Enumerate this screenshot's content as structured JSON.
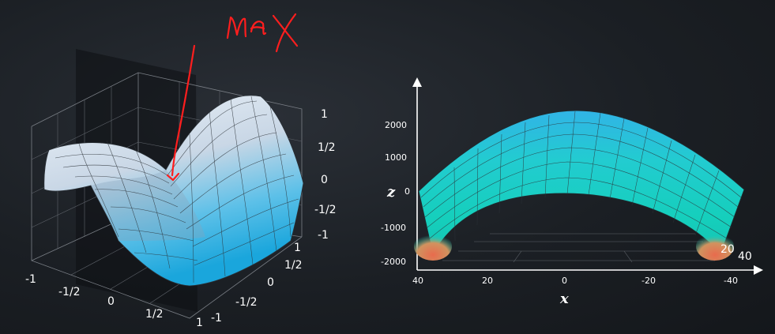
{
  "annotation": {
    "label": "max"
  },
  "left_plot": {
    "x_ticks": [
      "-1",
      "-1/2",
      "0",
      "1/2",
      "1"
    ],
    "y_ticks": [
      "-1",
      "-1/2",
      "0",
      "1/2",
      "1"
    ],
    "z_ticks": [
      "1",
      "1/2",
      "0",
      "-1/2",
      "-1"
    ]
  },
  "right_plot": {
    "z_label": "z",
    "x_label": "x",
    "z_ticks": [
      "2000",
      "1000",
      "0",
      "-1000",
      "-2000"
    ],
    "x_ticks": [
      "40",
      "20",
      "0",
      "-20",
      "-40"
    ],
    "depth_ticks": [
      "20",
      "40"
    ]
  },
  "chart_data": [
    {
      "type": "surface",
      "x_ticks": [
        "-1",
        "-1/2",
        "0",
        "1/2",
        "1"
      ],
      "y_ticks": [
        "-1",
        "-1/2",
        "0",
        "1/2",
        "1"
      ],
      "z_ticks": [
        "1",
        "1/2",
        "0",
        "-1/2",
        "-1"
      ],
      "xlim": [
        -1,
        1
      ],
      "ylim": [
        -1,
        1
      ],
      "zlim": [
        -1,
        1
      ],
      "surface_colors": [
        "#dfeaf4",
        "#2fb6e6"
      ]
    },
    {
      "type": "surface",
      "xlabel": "x",
      "zlabel": "z",
      "x_ticks": [
        40,
        20,
        0,
        -20,
        -40
      ],
      "z_ticks": [
        2000,
        1000,
        0,
        -1000,
        -2000
      ],
      "depth_ticks": [
        20,
        40
      ],
      "xlim": [
        40,
        -40
      ],
      "zlim": [
        -2000,
        2000
      ],
      "surface_colors": [
        "#2fb6e6",
        "#1ad4c0",
        "#e07a5f"
      ]
    }
  ]
}
